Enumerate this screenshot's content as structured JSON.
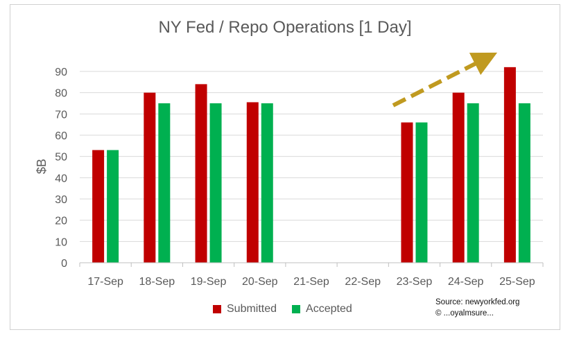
{
  "chart_data": {
    "type": "bar",
    "title": "NY Fed / Repo Operations [1 Day]",
    "xlabel": "",
    "ylabel": "$B",
    "ylim": [
      0,
      90
    ],
    "yticks": [
      0,
      10,
      20,
      30,
      40,
      50,
      60,
      70,
      80,
      90
    ],
    "categories": [
      "17-Sep",
      "18-Sep",
      "19-Sep",
      "20-Sep",
      "21-Sep",
      "22-Sep",
      "23-Sep",
      "24-Sep",
      "25-Sep"
    ],
    "series": [
      {
        "name": "Submitted",
        "color": "#c00000",
        "values": [
          53,
          80,
          84,
          75.5,
          null,
          null,
          66,
          80,
          92
        ]
      },
      {
        "name": "Accepted",
        "color": "#00b050",
        "values": [
          53,
          75,
          75,
          75,
          null,
          null,
          66,
          75,
          75
        ]
      }
    ],
    "grid": true,
    "legend_position": "bottom",
    "annotation_arrow_color": "#c09a20"
  },
  "source": {
    "line1": "Source: newyorkfed.org",
    "line2": "© ...oyalmsure..."
  }
}
